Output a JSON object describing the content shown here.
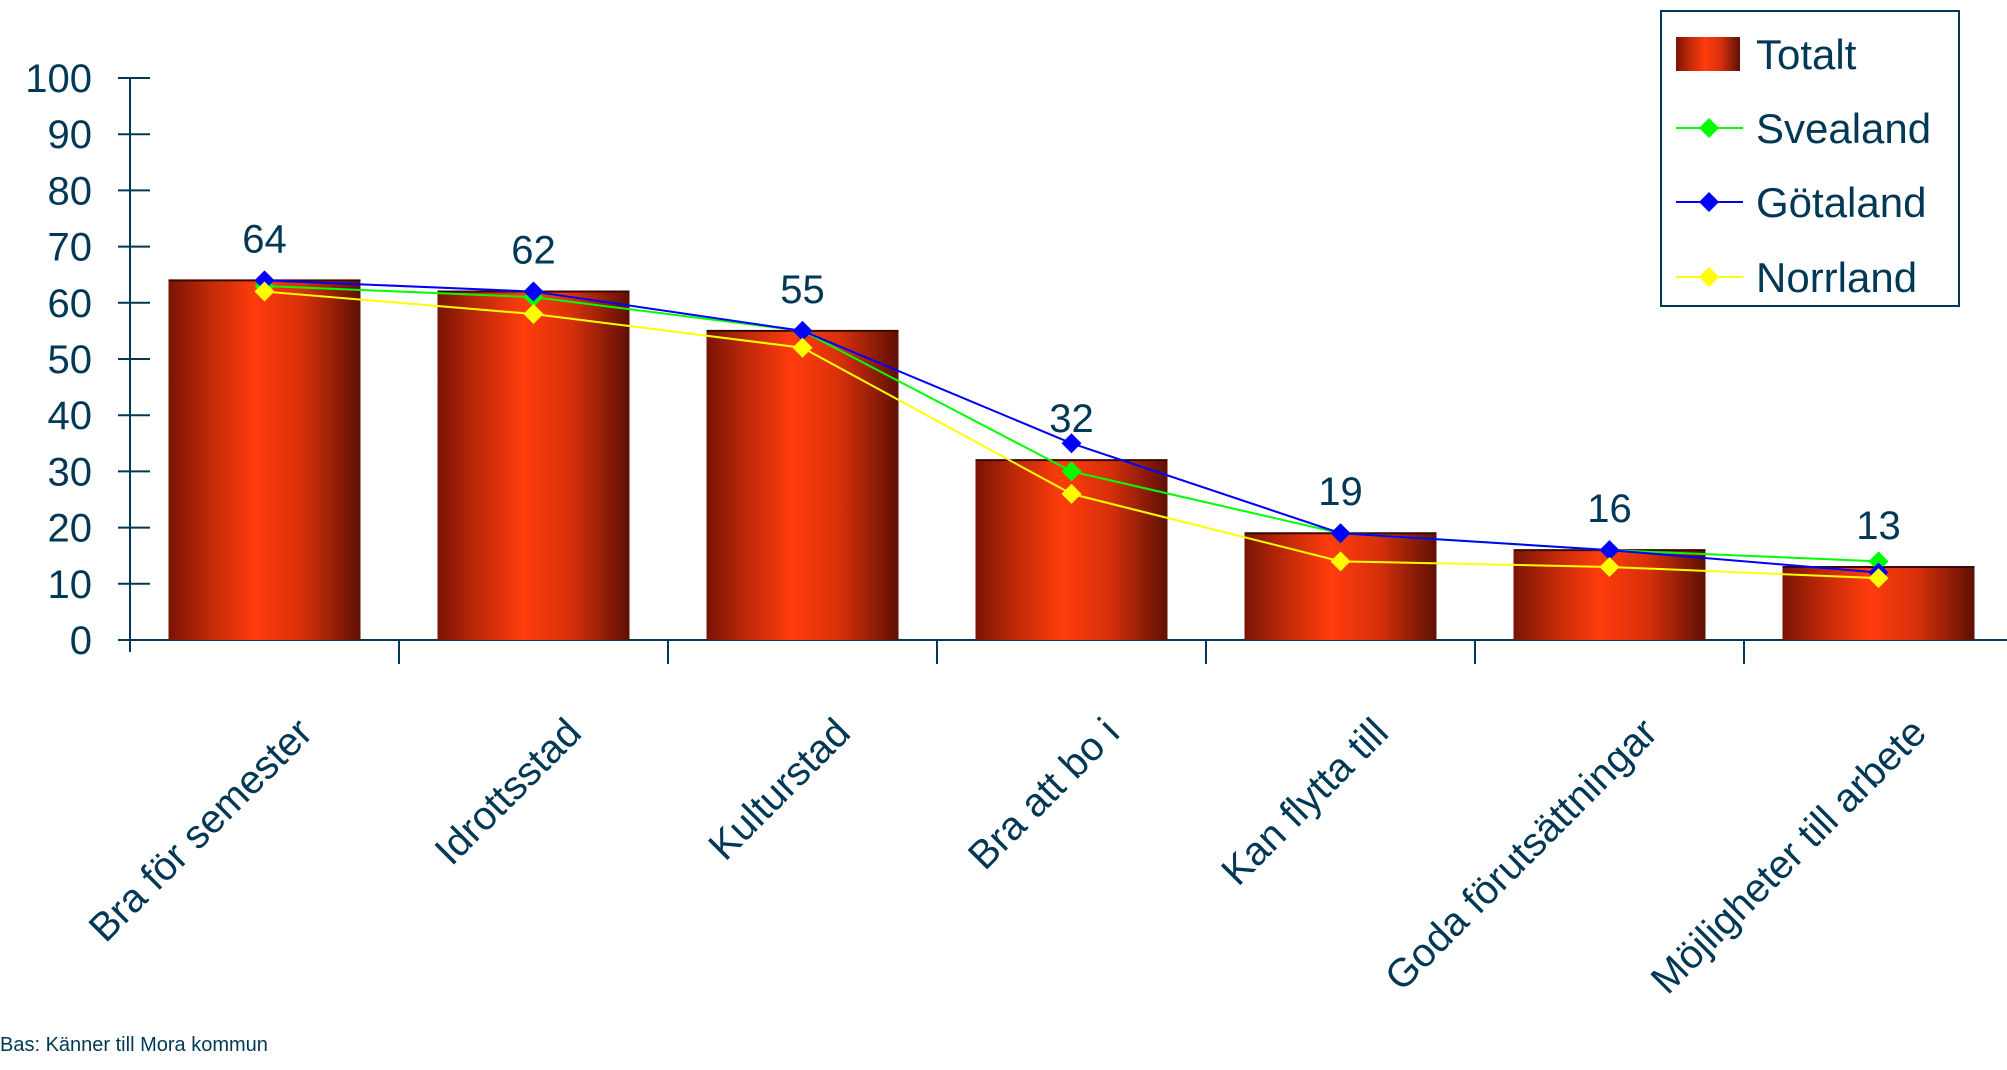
{
  "chart_data": {
    "type": "bar",
    "categories": [
      "Bra för semester",
      "Idrottsstad",
      "Kulturstad",
      "Bra att bo i",
      "Kan flytta till",
      "Goda förutsättningar",
      "Möjligheter till arbete"
    ],
    "ylim": [
      0,
      100
    ],
    "yticks": [
      0,
      10,
      20,
      30,
      40,
      50,
      60,
      70,
      80,
      90,
      100
    ],
    "grid": false,
    "legend_position": "top-right",
    "bar_series": {
      "name": "Totalt",
      "values": [
        64,
        62,
        55,
        32,
        19,
        16,
        13
      ],
      "data_labels": [
        "64",
        "62",
        "55",
        "32",
        "19",
        "16",
        "13"
      ],
      "color": "#E8380A"
    },
    "line_series": [
      {
        "name": "Svealand",
        "values": [
          63,
          61,
          55,
          30,
          19,
          16,
          14
        ],
        "color": "#00FF00"
      },
      {
        "name": "Götaland",
        "values": [
          64,
          62,
          55,
          35,
          19,
          16,
          12
        ],
        "color": "#0000FF"
      },
      {
        "name": "Norrland",
        "values": [
          62,
          58,
          52,
          26,
          14,
          13,
          11
        ],
        "color": "#FFFF00"
      }
    ],
    "text_color": "#003855"
  },
  "footnote": "Bas: Känner till Mora kommun"
}
